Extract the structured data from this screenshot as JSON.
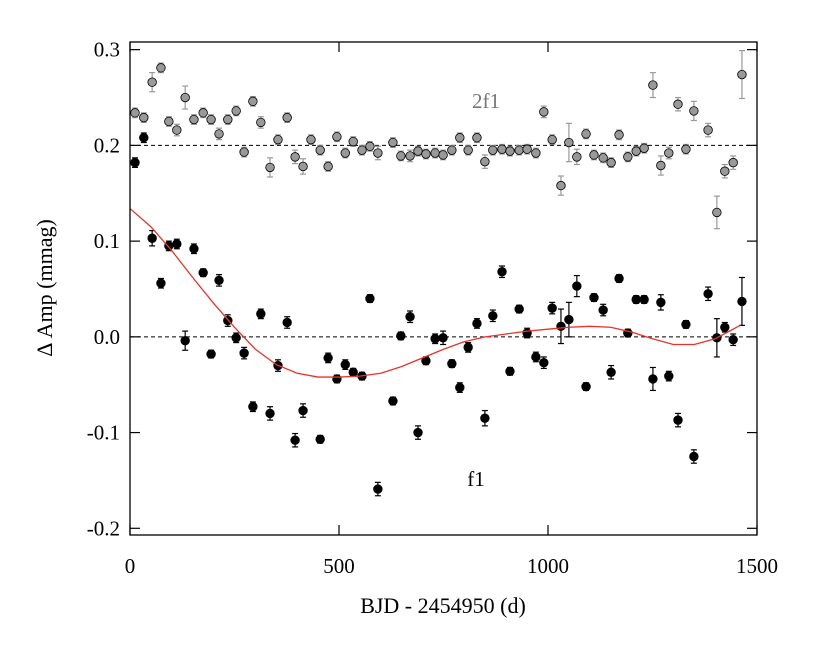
{
  "chart_data": {
    "type": "scatter",
    "xlabel": "BJD - 2454950 (d)",
    "ylabel": "Δ Amp (mmag)",
    "xlim": [
      0,
      1500
    ],
    "xticks": [
      0,
      500,
      1000,
      1500
    ],
    "ylim": [
      -0.207,
      0.308
    ],
    "yticks": [
      -0.2,
      -0.1,
      {
        "value": 0,
        "label": "0.0"
      },
      0.1,
      0.2,
      0.3
    ],
    "hlines": [
      0,
      0.2
    ],
    "series": [
      {
        "name": "2f1",
        "color": "#999999",
        "x": [
          12,
          33,
          53,
          74,
          93,
          112,
          132,
          153,
          175,
          194,
          213,
          234,
          254,
          273,
          294,
          313,
          335,
          354,
          376,
          395,
          414,
          433,
          455,
          474,
          495,
          515,
          534,
          555,
          574,
          593,
          629,
          648,
          670,
          689,
          708,
          730,
          749,
          770,
          789,
          809,
          830,
          849,
          868,
          890,
          909,
          931,
          950,
          971,
          990,
          1010,
          1031,
          1050,
          1069,
          1091,
          1110,
          1132,
          1151,
          1170,
          1191,
          1211,
          1230,
          1251,
          1270,
          1289,
          1311,
          1330,
          1349,
          1383,
          1404,
          1423,
          1443,
          1464
        ],
        "values": [
          0.234,
          0.229,
          0.266,
          0.281,
          0.225,
          0.216,
          0.25,
          0.227,
          0.234,
          0.227,
          0.212,
          0.227,
          0.236,
          0.193,
          0.246,
          0.224,
          0.177,
          0.206,
          0.229,
          0.188,
          0.178,
          0.206,
          0.195,
          0.178,
          0.209,
          0.192,
          0.204,
          0.195,
          0.199,
          0.192,
          0.203,
          0.189,
          0.189,
          0.194,
          0.191,
          0.192,
          0.19,
          0.195,
          0.208,
          0.195,
          0.208,
          0.183,
          0.195,
          0.196,
          0.194,
          0.195,
          0.196,
          0.192,
          0.235,
          0.206,
          0.158,
          0.203,
          0.188,
          0.212,
          0.19,
          0.187,
          0.182,
          0.211,
          0.188,
          0.194,
          0.197,
          0.263,
          0.179,
          0.192,
          0.243,
          0.196,
          0.236,
          0.216,
          0.13,
          0.173,
          0.182,
          0.274
        ],
        "errors": [
          0.005,
          0.005,
          0.01,
          0.005,
          0.005,
          0.006,
          0.012,
          0.005,
          0.005,
          0.005,
          0.006,
          0.005,
          0.005,
          0.005,
          0.005,
          0.006,
          0.01,
          0.005,
          0.005,
          0.007,
          0.008,
          0.005,
          0.005,
          0.005,
          0.005,
          0.005,
          0.005,
          0.005,
          0.005,
          0.007,
          0.005,
          0.005,
          0.006,
          0.005,
          0.005,
          0.005,
          0.005,
          0.005,
          0.005,
          0.005,
          0.005,
          0.007,
          0.005,
          0.005,
          0.005,
          0.005,
          0.005,
          0.005,
          0.006,
          0.005,
          0.01,
          0.02,
          0.008,
          0.005,
          0.005,
          0.005,
          0.005,
          0.005,
          0.005,
          0.005,
          0.005,
          0.013,
          0.01,
          0.006,
          0.007,
          0.005,
          0.01,
          0.007,
          0.017,
          0.007,
          0.007,
          0.025
        ]
      },
      {
        "name": "f1",
        "color": "#000000",
        "x": [
          12,
          33,
          53,
          74,
          93,
          112,
          132,
          153,
          175,
          194,
          213,
          234,
          254,
          273,
          294,
          313,
          335,
          354,
          376,
          395,
          414,
          455,
          474,
          495,
          515,
          534,
          555,
          574,
          593,
          629,
          648,
          670,
          689,
          708,
          730,
          749,
          770,
          789,
          809,
          830,
          849,
          868,
          890,
          909,
          931,
          950,
          971,
          990,
          1010,
          1031,
          1050,
          1069,
          1091,
          1110,
          1132,
          1151,
          1170,
          1191,
          1211,
          1230,
          1251,
          1270,
          1289,
          1311,
          1330,
          1349,
          1383,
          1404,
          1423,
          1443,
          1464
        ],
        "values": [
          0.182,
          0.208,
          0.103,
          0.056,
          0.095,
          0.097,
          -0.004,
          0.092,
          0.067,
          -0.018,
          0.059,
          0.017,
          -0.001,
          -0.017,
          -0.073,
          0.024,
          -0.08,
          -0.03,
          0.015,
          -0.108,
          -0.077,
          -0.107,
          -0.022,
          -0.044,
          -0.029,
          -0.037,
          -0.041,
          0.04,
          -0.159,
          -0.067,
          0.001,
          0.021,
          -0.1,
          -0.025,
          -0.002,
          -0.001,
          -0.028,
          -0.053,
          -0.011,
          0.014,
          -0.085,
          0.022,
          0.068,
          -0.036,
          0.029,
          0.004,
          -0.021,
          -0.027,
          0.03,
          0.011,
          0.018,
          0.053,
          -0.052,
          0.041,
          0.028,
          -0.037,
          0.061,
          0.004,
          0.039,
          0.039,
          -0.044,
          0.036,
          -0.041,
          -0.087,
          0.013,
          -0.125,
          0.045,
          -0.001,
          0.01,
          -0.003,
          0.037
        ],
        "errors": [
          0.005,
          0.005,
          0.008,
          0.005,
          0.005,
          0.005,
          0.01,
          0.005,
          0.004,
          0.004,
          0.006,
          0.006,
          0.005,
          0.006,
          0.005,
          0.005,
          0.007,
          0.006,
          0.006,
          0.007,
          0.007,
          0.004,
          0.005,
          0.004,
          0.005,
          0.004,
          0.004,
          0.004,
          0.007,
          0.004,
          0.004,
          0.006,
          0.007,
          0.004,
          0.005,
          0.007,
          0.004,
          0.005,
          0.005,
          0.005,
          0.008,
          0.006,
          0.006,
          0.004,
          0.004,
          0.005,
          0.005,
          0.006,
          0.006,
          0.018,
          0.018,
          0.011,
          0.004,
          0.004,
          0.006,
          0.007,
          0.004,
          0.004,
          0.004,
          0.004,
          0.012,
          0.008,
          0.005,
          0.007,
          0.004,
          0.007,
          0.007,
          0.02,
          0.005,
          0.006,
          0.025
        ]
      },
      {
        "type": "line",
        "color": "#e8332a",
        "x": [
          0,
          50,
          100,
          150,
          200,
          250,
          300,
          350,
          400,
          450,
          500,
          550,
          600,
          650,
          700,
          750,
          800,
          850,
          900,
          950,
          1000,
          1050,
          1100,
          1150,
          1200,
          1250,
          1300,
          1350,
          1400,
          1460
        ],
        "values": [
          0.134,
          0.115,
          0.09,
          0.062,
          0.035,
          0.01,
          -0.013,
          -0.029,
          -0.038,
          -0.042,
          -0.042,
          -0.041,
          -0.038,
          -0.031,
          -0.022,
          -0.013,
          -0.005,
          0.0,
          0.003,
          0.006,
          0.008,
          0.01,
          0.011,
          0.01,
          0.005,
          -0.002,
          -0.008,
          -0.008,
          -0.002,
          0.012
        ]
      }
    ]
  }
}
